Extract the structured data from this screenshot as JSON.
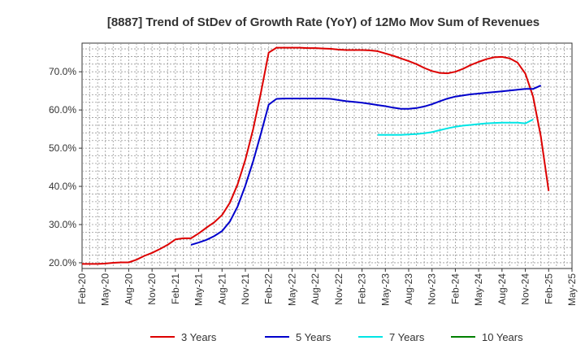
{
  "chart_data": {
    "type": "line",
    "title": "[8887]  Trend of StDev of Growth Rate (YoY) of 12Mo Mov Sum of Revenues",
    "xlabel": "",
    "ylabel": "",
    "x_ticks": [
      "Feb-20",
      "May-20",
      "Aug-20",
      "Nov-20",
      "Feb-21",
      "May-21",
      "Aug-21",
      "Nov-21",
      "Feb-22",
      "May-22",
      "Aug-22",
      "Nov-22",
      "Feb-23",
      "May-23",
      "Aug-23",
      "Nov-23",
      "Feb-24",
      "May-24",
      "Aug-24",
      "Nov-24",
      "Feb-25",
      "May-25"
    ],
    "y_ticks": [
      20,
      30,
      40,
      50,
      60,
      70
    ],
    "y_tick_labels": [
      "20.0%",
      "30.0%",
      "40.0%",
      "50.0%",
      "60.0%",
      "70.0%"
    ],
    "ylim": [
      18.5,
      77.5
    ],
    "grid": true,
    "legend_position": "bottom",
    "series": [
      {
        "name": "3 Years",
        "color": "#dd0000",
        "start_index": 0,
        "values": [
          19.7,
          19.7,
          19.7,
          19.8,
          20.0,
          20.1,
          20.1,
          20.8,
          21.8,
          22.6,
          23.6,
          24.7,
          26.1,
          26.4,
          26.4,
          27.7,
          29.2,
          30.6,
          32.5,
          35.7,
          40.5,
          47.0,
          55.0,
          64.5,
          75.0,
          76.3,
          76.3,
          76.3,
          76.3,
          76.2,
          76.2,
          76.1,
          76.0,
          75.8,
          75.7,
          75.7,
          75.7,
          75.6,
          75.4,
          74.8,
          74.2,
          73.5,
          72.8,
          72.0,
          71.0,
          70.2,
          69.7,
          69.6,
          70.0,
          70.8,
          71.8,
          72.6,
          73.3,
          73.8,
          73.9,
          73.5,
          72.4,
          69.5,
          63.5,
          53.0,
          38.8
        ]
      },
      {
        "name": "5 Years",
        "color": "#0000cc",
        "start_index": 14,
        "values": [
          24.7,
          25.3,
          26.0,
          27.0,
          28.3,
          30.8,
          34.7,
          40.2,
          46.6,
          53.8,
          61.4,
          62.9,
          63.0,
          63.0,
          63.0,
          63.0,
          63.0,
          63.0,
          62.9,
          62.6,
          62.3,
          62.1,
          61.9,
          61.6,
          61.3,
          61.0,
          60.6,
          60.3,
          60.3,
          60.5,
          60.9,
          61.5,
          62.3,
          63.0,
          63.5,
          63.8,
          64.1,
          64.3,
          64.5,
          64.7,
          64.9,
          65.1,
          65.3,
          65.5,
          65.5,
          66.4
        ]
      },
      {
        "name": "7 Years",
        "color": "#00e5e5",
        "start_index": 38,
        "values": [
          53.5,
          53.5,
          53.5,
          53.5,
          53.6,
          53.7,
          53.9,
          54.2,
          54.7,
          55.2,
          55.6,
          55.9,
          56.1,
          56.3,
          56.5,
          56.6,
          56.7,
          56.7,
          56.7,
          56.5,
          57.5
        ]
      },
      {
        "name": "10 Years",
        "color": "#008000",
        "start_index": 60,
        "values": []
      }
    ]
  }
}
